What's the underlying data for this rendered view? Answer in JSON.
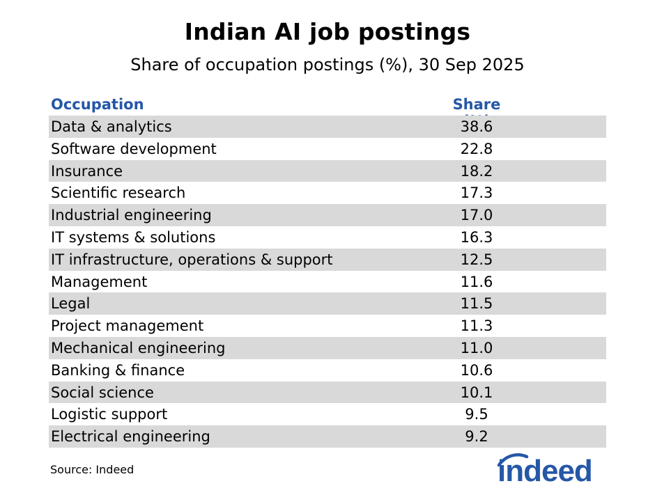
{
  "chart_data": {
    "type": "table",
    "title": "Indian AI job postings",
    "subtitle": "Share of occupation postings (%), 30 Sep 2025",
    "columns": [
      "Occupation",
      "Share (%)"
    ],
    "rows": [
      {
        "occupation": "Data & analytics",
        "share": "38.6"
      },
      {
        "occupation": "Software development",
        "share": "22.8"
      },
      {
        "occupation": "Insurance",
        "share": "18.2"
      },
      {
        "occupation": "Scientific research",
        "share": "17.3"
      },
      {
        "occupation": "Industrial engineering",
        "share": "17.0"
      },
      {
        "occupation": "IT systems & solutions",
        "share": "16.3"
      },
      {
        "occupation": "IT infrastructure, operations & support",
        "share": "12.5"
      },
      {
        "occupation": "Management",
        "share": "11.6"
      },
      {
        "occupation": "Legal",
        "share": "11.5"
      },
      {
        "occupation": "Project management",
        "share": "11.3"
      },
      {
        "occupation": "Mechanical engineering",
        "share": "11.0"
      },
      {
        "occupation": "Banking & finance",
        "share": "10.6"
      },
      {
        "occupation": "Social science",
        "share": "10.1"
      },
      {
        "occupation": "Logistic support",
        "share": "9.5"
      },
      {
        "occupation": "Electrical engineering",
        "share": "9.2"
      }
    ],
    "source": "Source: Indeed"
  },
  "logo": {
    "text": "indeed",
    "color": "#2557a7"
  },
  "colors": {
    "header_text": "#2557a7",
    "row_shade": "#d9d9d9"
  }
}
